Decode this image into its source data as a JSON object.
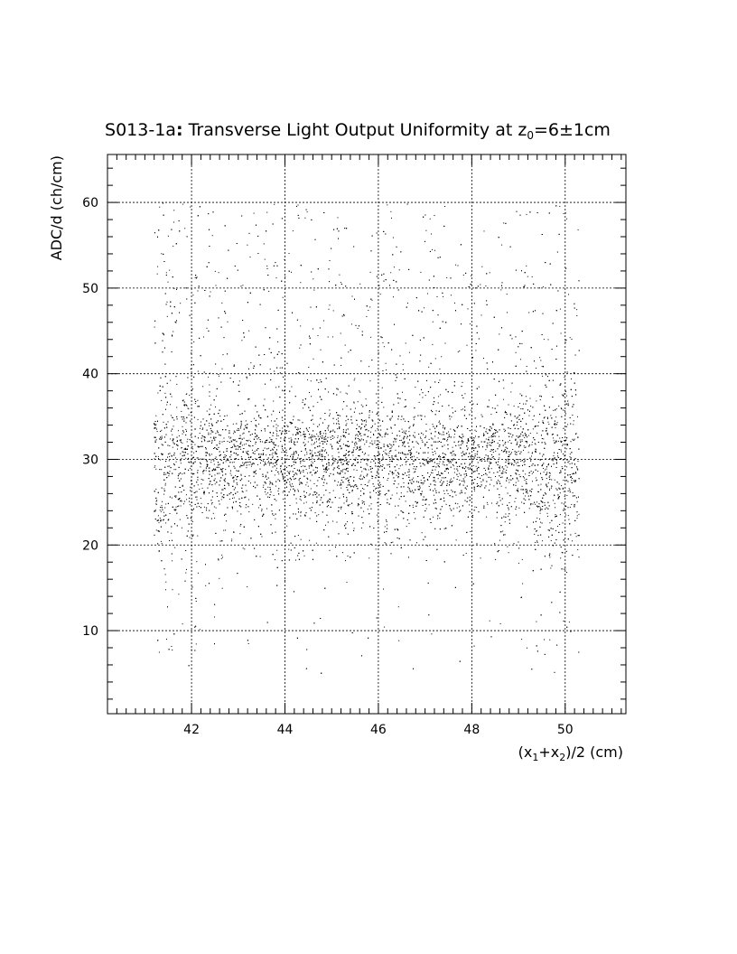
{
  "chart_data": {
    "type": "scatter",
    "title": {
      "prefix": "S013-1a",
      "colon": ":",
      "text": " Transverse Light Output Uniformity at z",
      "subscript": "0",
      "suffix": "=6±1cm"
    },
    "xlabel": {
      "p1": "(x",
      "s1": "1",
      "p2": "+x",
      "s2": "2",
      "p3": ")/2 (cm)"
    },
    "ylabel": "ADC/d (ch/cm)",
    "xlim": [
      40.2,
      51.3
    ],
    "ylim": [
      0.3,
      65.6
    ],
    "x_ticks": [
      42,
      44,
      46,
      48,
      50
    ],
    "x_tick_labels": [
      "42",
      "44",
      "46",
      "48",
      "50"
    ],
    "y_ticks": [
      10,
      20,
      30,
      40,
      50,
      60
    ],
    "y_tick_labels": [
      "10",
      "20",
      "30",
      "40",
      "50",
      "60"
    ],
    "grid": true,
    "series": [
      {
        "marker": "dot",
        "color": "#000000",
        "x_range": [
          41.2,
          50.3
        ],
        "points_total": 9000,
        "core_band": {
          "y_center": 29.5,
          "y_spread": 3.0
        },
        "upper_tail_max": 60,
        "edge_low_y_min": 5
      }
    ]
  }
}
